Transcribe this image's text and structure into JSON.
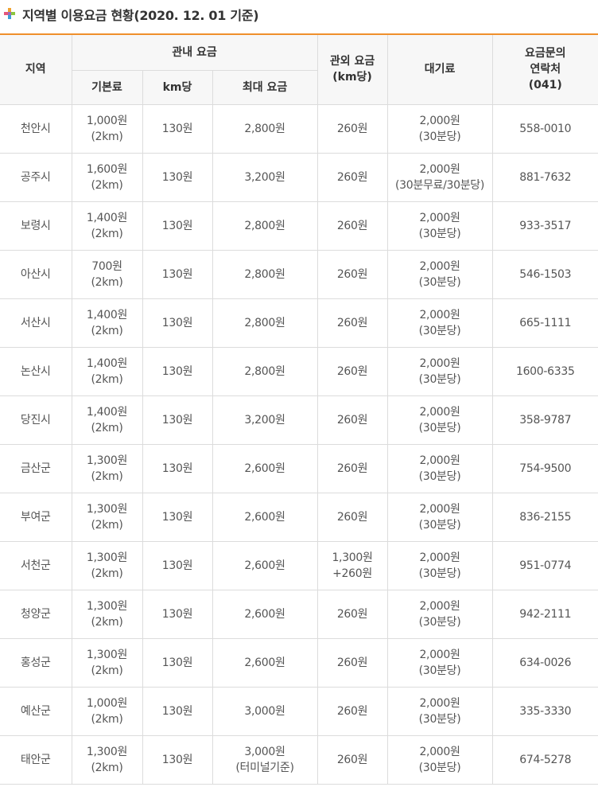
{
  "title": "지역별 이용요금 현황(2020. 12. 01 기준)",
  "colors": {
    "accent": "#ef8f2b",
    "header_bg": "#f7f7f7",
    "border": "#dcdcdc"
  },
  "headers": {
    "region": "지역",
    "in_city": "관내 요금",
    "base": "기본료",
    "per_km": "km당",
    "max": "최대 요금",
    "out_line1": "관외 요금",
    "out_line2": "(km당)",
    "wait": "대기료",
    "contact_line1": "요금문의",
    "contact_line2": "연락처",
    "contact_line3": "(041)"
  },
  "rows": [
    {
      "region": "천안시",
      "base1": "1,000원",
      "base2": "(2km)",
      "per_km": "130원",
      "max1": "2,800원",
      "max2": "",
      "out1": "260원",
      "out2": "",
      "wait1": "2,000원",
      "wait2": "(30분당)",
      "contact": "558-0010"
    },
    {
      "region": "공주시",
      "base1": "1,600원",
      "base2": "(2km)",
      "per_km": "130원",
      "max1": "3,200원",
      "max2": "",
      "out1": "260원",
      "out2": "",
      "wait1": "2,000원",
      "wait2": "(30분무료/30분당)",
      "contact": "881-7632"
    },
    {
      "region": "보령시",
      "base1": "1,400원",
      "base2": "(2km)",
      "per_km": "130원",
      "max1": "2,800원",
      "max2": "",
      "out1": "260원",
      "out2": "",
      "wait1": "2,000원",
      "wait2": "(30분당)",
      "contact": "933-3517"
    },
    {
      "region": "아산시",
      "base1": "700원",
      "base2": "(2km)",
      "per_km": "130원",
      "max1": "2,800원",
      "max2": "",
      "out1": "260원",
      "out2": "",
      "wait1": "2,000원",
      "wait2": "(30분당)",
      "contact": "546-1503"
    },
    {
      "region": "서산시",
      "base1": "1,400원",
      "base2": "(2km)",
      "per_km": "130원",
      "max1": "2,800원",
      "max2": "",
      "out1": "260원",
      "out2": "",
      "wait1": "2,000원",
      "wait2": "(30분당)",
      "contact": "665-1111"
    },
    {
      "region": "논산시",
      "base1": "1,400원",
      "base2": "(2km)",
      "per_km": "130원",
      "max1": "2,800원",
      "max2": "",
      "out1": "260원",
      "out2": "",
      "wait1": "2,000원",
      "wait2": "(30분당)",
      "contact": "1600-6335"
    },
    {
      "region": "당진시",
      "base1": "1,400원",
      "base2": "(2km)",
      "per_km": "130원",
      "max1": "3,200원",
      "max2": "",
      "out1": "260원",
      "out2": "",
      "wait1": "2,000원",
      "wait2": "(30분당)",
      "contact": "358-9787"
    },
    {
      "region": "금산군",
      "base1": "1,300원",
      "base2": "(2km)",
      "per_km": "130원",
      "max1": "2,600원",
      "max2": "",
      "out1": "260원",
      "out2": "",
      "wait1": "2,000원",
      "wait2": "(30분당)",
      "contact": "754-9500"
    },
    {
      "region": "부여군",
      "base1": "1,300원",
      "base2": "(2km)",
      "per_km": "130원",
      "max1": "2,600원",
      "max2": "",
      "out1": "260원",
      "out2": "",
      "wait1": "2,000원",
      "wait2": "(30분당)",
      "contact": "836-2155"
    },
    {
      "region": "서천군",
      "base1": "1,300원",
      "base2": "(2km)",
      "per_km": "130원",
      "max1": "2,600원",
      "max2": "",
      "out1": "1,300원",
      "out2": "+260원",
      "wait1": "2,000원",
      "wait2": "(30분당)",
      "contact": "951-0774"
    },
    {
      "region": "청양군",
      "base1": "1,300원",
      "base2": "(2km)",
      "per_km": "130원",
      "max1": "2,600원",
      "max2": "",
      "out1": "260원",
      "out2": "",
      "wait1": "2,000원",
      "wait2": "(30분당)",
      "contact": "942-2111"
    },
    {
      "region": "홍성군",
      "base1": "1,300원",
      "base2": "(2km)",
      "per_km": "130원",
      "max1": "2,600원",
      "max2": "",
      "out1": "260원",
      "out2": "",
      "wait1": "2,000원",
      "wait2": "(30분당)",
      "contact": "634-0026"
    },
    {
      "region": "예산군",
      "base1": "1,000원",
      "base2": "(2km)",
      "per_km": "130원",
      "max1": "3,000원",
      "max2": "",
      "out1": "260원",
      "out2": "",
      "wait1": "2,000원",
      "wait2": "(30분당)",
      "contact": "335-3330"
    },
    {
      "region": "태안군",
      "base1": "1,300원",
      "base2": "(2km)",
      "per_km": "130원",
      "max1": "3,000원",
      "max2": "(터미널기준)",
      "out1": "260원",
      "out2": "",
      "wait1": "2,000원",
      "wait2": "(30분당)",
      "contact": "674-5278"
    }
  ]
}
